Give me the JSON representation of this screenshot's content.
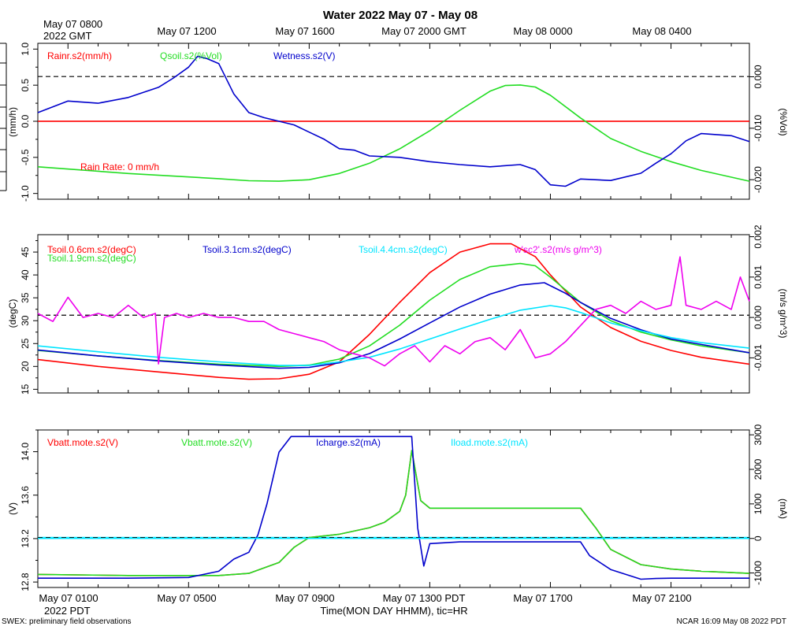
{
  "title": "Water 2022 May 07 - May 08",
  "top_axis": {
    "gmt_first": [
      "May 07 0800",
      "2022 GMT"
    ],
    "ticks": [
      "May 07 1200",
      "May 07 1600",
      "May 07 2000 GMT",
      "May 08 0000",
      "May 08 0400"
    ]
  },
  "bottom_axis": {
    "ticks": [
      "May 07 0100",
      "May 07 0500",
      "May 07 0900",
      "May 07 1300 PDT",
      "May 07 1700",
      "May 07 2100"
    ],
    "sub": "2022 PDT",
    "xlabel": "Time(MON DAY HHMM), tic=HR"
  },
  "footer": {
    "left": "SWEX: preliminary field observations",
    "right": "NCAR 16:09 May 08 2022 PDT"
  },
  "colors": {
    "red": "#ff0000",
    "green": "#22dd22",
    "blue": "#0000cc",
    "cyan": "#00e5ff",
    "magenta": "#ee00ee"
  },
  "chart_data": [
    {
      "type": "line",
      "panel": "top",
      "x_unit": "hours since May 07 0000 PDT",
      "xlim": [
        0.0,
        23.6
      ],
      "left_axis": {
        "label": "(mm/h)",
        "ticks": [
          "-1.0",
          "-0.5",
          "0.0",
          "0.5",
          "1.0"
        ],
        "ylim": [
          -1.08,
          1.08
        ]
      },
      "right_axis": {
        "label": "(%Vol)",
        "ticks": [
          "-0.020",
          "-0.010",
          "0.000"
        ],
        "ylim": [
          -0.0238,
          0.0065
        ]
      },
      "legend": [
        "Rainr.s2(mm/h)",
        "Qsoil.s2(%Vol)",
        "Wetness.s2(V)"
      ],
      "annotation": "Rain Rate: 0 mm/h",
      "reference_lines": [
        {
          "axis": "left",
          "y": 0.62,
          "style": "dashed"
        },
        {
          "axis": "left",
          "y": 0.0,
          "style": "red-dashed"
        }
      ],
      "series": [
        {
          "name": "Rainr.s2(mm/h)",
          "axis": "left",
          "color": "red",
          "x": [
            0,
            23.6
          ],
          "y": [
            0,
            0
          ]
        },
        {
          "name": "Qsoil.s2(%Vol)",
          "axis": "right",
          "color": "green",
          "x": [
            0,
            3,
            6,
            7,
            8,
            9,
            10,
            11,
            12,
            13,
            14,
            15,
            15.5,
            16,
            16.5,
            17,
            18,
            19,
            20,
            21,
            22,
            23.6
          ],
          "y": [
            -0.0175,
            -0.0188,
            -0.0198,
            -0.0202,
            -0.0203,
            -0.02,
            -0.0188,
            -0.0168,
            -0.014,
            -0.0105,
            -0.0065,
            -0.0028,
            -0.0017,
            -0.0016,
            -0.002,
            -0.0036,
            -0.008,
            -0.012,
            -0.0145,
            -0.0165,
            -0.0182,
            -0.0203
          ]
        },
        {
          "name": "Wetness.s2(V)",
          "axis": "left",
          "color": "blue",
          "x": [
            0,
            1,
            2,
            3,
            4,
            4.5,
            5,
            5.3,
            5.6,
            6,
            6.5,
            7,
            7.5,
            8,
            8.5,
            9,
            9.5,
            10,
            10.5,
            11,
            12,
            13,
            14,
            15,
            16,
            16.5,
            17,
            17.5,
            18,
            19,
            20,
            20.5,
            21,
            21.5,
            22,
            23,
            23.6
          ],
          "y": [
            0.12,
            0.28,
            0.25,
            0.33,
            0.47,
            0.6,
            0.75,
            0.9,
            0.87,
            0.8,
            0.38,
            0.12,
            0.05,
            0.0,
            -0.05,
            -0.15,
            -0.25,
            -0.38,
            -0.4,
            -0.48,
            -0.5,
            -0.56,
            -0.6,
            -0.63,
            -0.6,
            -0.67,
            -0.88,
            -0.9,
            -0.8,
            -0.82,
            -0.72,
            -0.58,
            -0.45,
            -0.27,
            -0.17,
            -0.2,
            -0.28
          ]
        }
      ]
    },
    {
      "type": "line",
      "panel": "middle",
      "x_unit": "hours since May 07 0000 PDT",
      "xlim": [
        0.0,
        23.6
      ],
      "left_axis": {
        "label": "(degC)",
        "ticks": [
          "15",
          "20",
          "25",
          "30",
          "35",
          "40",
          "45"
        ],
        "ylim": [
          14.2,
          48.8
        ]
      },
      "right_axis": {
        "label": "(m/s g/m^3)",
        "ticks": [
          "-0.001",
          "0.000",
          "0.001",
          "0.002"
        ],
        "ylim": [
          -0.00187,
          0.00205
        ]
      },
      "legend": [
        "Tsoil.0.6cm.s2(degC)",
        "Tsoil.1.9cm.s2(degC)",
        "Tsoil.3.1cm.s2(degC)",
        "Tsoil.4.4cm.s2(degC)",
        "w'sc2'.s2(m/s g/m^3)"
      ],
      "reference_lines": [
        {
          "axis": "left",
          "y": 31.2,
          "style": "dashed"
        }
      ],
      "series": [
        {
          "name": "Tsoil.0.6cm.s2(degC)",
          "axis": "left",
          "color": "red",
          "x": [
            0,
            2,
            4,
            6,
            7,
            8,
            9,
            10,
            11,
            12,
            13,
            14,
            15,
            15.7,
            16.5,
            17,
            18,
            19,
            20,
            21,
            22,
            23.6
          ],
          "y": [
            21.5,
            20.0,
            18.8,
            17.6,
            17.2,
            17.3,
            18.3,
            21.0,
            27.0,
            34.0,
            40.5,
            45.0,
            46.8,
            46.8,
            44.0,
            40.0,
            33.0,
            28.5,
            25.5,
            23.5,
            22.0,
            20.5
          ]
        },
        {
          "name": "Tsoil.1.9cm.s2(degC)",
          "axis": "left",
          "color": "green",
          "x": [
            0,
            2,
            4,
            6,
            8,
            9,
            10,
            11,
            12,
            13,
            14,
            15,
            16,
            16.5,
            17,
            18,
            19,
            20,
            21,
            22,
            23.6
          ],
          "y": [
            23.5,
            22.3,
            21.3,
            20.5,
            20.0,
            20.3,
            21.6,
            24.5,
            29.0,
            34.5,
            39.0,
            41.8,
            42.5,
            42.0,
            39.5,
            34.0,
            30.0,
            27.5,
            25.8,
            24.5,
            23.0
          ]
        },
        {
          "name": "Tsoil.3.1cm.s2(degC)",
          "axis": "left",
          "color": "blue",
          "x": [
            0,
            2,
            4,
            6,
            8,
            9,
            10,
            11,
            12,
            13,
            14,
            15,
            16,
            16.8,
            17.5,
            18,
            19,
            20,
            21,
            22,
            23.6
          ],
          "y": [
            23.6,
            22.3,
            21.2,
            20.3,
            19.6,
            19.8,
            20.8,
            22.8,
            26.0,
            29.5,
            33.0,
            35.8,
            37.8,
            38.3,
            36.0,
            34.0,
            30.5,
            28.0,
            26.0,
            24.8,
            23.0
          ]
        },
        {
          "name": "Tsoil.4.4cm.s2(degC)",
          "axis": "left",
          "color": "cyan",
          "x": [
            0,
            2,
            4,
            6,
            8,
            9,
            10,
            11,
            12,
            13,
            14,
            15,
            16,
            17,
            17.5,
            18,
            19,
            20,
            21,
            22,
            23.6
          ],
          "y": [
            24.5,
            23.2,
            22.0,
            21.0,
            20.2,
            20.2,
            21.0,
            22.0,
            23.8,
            26.0,
            28.2,
            30.3,
            32.3,
            33.3,
            32.8,
            31.8,
            29.5,
            27.8,
            26.3,
            25.2,
            24.0
          ]
        },
        {
          "name": "w'sc2'.s2(m/s g/m^3)",
          "axis": "right",
          "color": "magenta",
          "x": [
            0,
            0.5,
            1,
            1.5,
            2,
            2.5,
            3,
            3.5,
            3.9,
            4.0,
            4.2,
            4.6,
            5,
            5.5,
            6,
            6.5,
            7,
            7.5,
            8,
            8.5,
            9,
            9.5,
            10,
            10.5,
            11,
            11.5,
            12,
            12.5,
            13,
            13.5,
            14,
            14.5,
            15,
            15.5,
            16,
            16.5,
            17,
            17.5,
            18,
            18.5,
            19,
            19.5,
            20,
            20.5,
            21,
            21.3,
            21.5,
            22,
            22.5,
            23,
            23.3,
            23.6
          ],
          "y": [
            0.0001,
            -0.0001,
            0.0005,
            0.0,
            0.0001,
            0.0,
            0.0003,
            0.0,
            0.0001,
            -0.00115,
            0.0,
            0.0001,
            0.0,
            0.0001,
            0.0,
            0.0,
            -0.0001,
            -0.0001,
            -0.0003,
            -0.0004,
            -0.0005,
            -0.0006,
            -0.0008,
            -0.0009,
            -0.001,
            -0.0012,
            -0.0009,
            -0.0007,
            -0.0011,
            -0.0007,
            -0.0009,
            -0.0006,
            -0.0005,
            -0.0008,
            -0.0003,
            -0.001,
            -0.0009,
            -0.0006,
            -0.0002,
            0.0002,
            0.0003,
            0.0001,
            0.0004,
            0.0002,
            0.0003,
            0.0015,
            0.0003,
            0.0002,
            0.0004,
            0.0002,
            0.001,
            0.0004
          ]
        }
      ]
    },
    {
      "type": "line",
      "panel": "bottom",
      "x_unit": "hours since May 07 0000 PDT",
      "xlim": [
        0.0,
        23.6
      ],
      "left_axis": {
        "label": "(V)",
        "ticks": [
          "12.8",
          "13.2",
          "13.6",
          "14.0"
        ],
        "ylim": [
          12.75,
          14.2
        ]
      },
      "right_axis": {
        "label": "(mA)",
        "ticks": [
          "-1000",
          "0",
          "1000",
          "2000",
          "3000"
        ],
        "ylim": [
          -1420,
          3140
        ]
      },
      "legend": [
        "Vbatt.mote.s2(V)",
        "Vbatt.mote.s2(V)",
        "Icharge.s2(mA)",
        "Iload.mote.s2(mA)"
      ],
      "reference_lines": [
        {
          "axis": "left",
          "y": 13.21,
          "style": "dashed-cyan"
        }
      ],
      "series": [
        {
          "name": "Vbatt.mote.s2(V)",
          "axis": "left",
          "color": "red",
          "x": [
            0,
            3,
            6,
            7,
            8,
            8.5,
            9,
            10,
            11,
            11.5,
            12,
            12.2,
            12.4,
            12.7,
            13,
            14,
            15,
            16,
            17,
            18,
            18.5,
            19,
            20,
            21,
            22,
            23.6
          ],
          "y": [
            12.87,
            12.86,
            12.86,
            12.88,
            12.98,
            13.12,
            13.21,
            13.24,
            13.3,
            13.35,
            13.45,
            13.6,
            14.01,
            13.55,
            13.48,
            13.48,
            13.48,
            13.48,
            13.48,
            13.48,
            13.3,
            13.1,
            12.96,
            12.92,
            12.9,
            12.88
          ]
        },
        {
          "name": "Vbatt.mote.s2(V)",
          "axis": "left",
          "color": "green",
          "x": [
            0,
            3,
            6,
            7,
            8,
            8.5,
            9,
            10,
            11,
            11.5,
            12,
            12.2,
            12.4,
            12.7,
            13,
            14,
            15,
            16,
            17,
            18,
            18.5,
            19,
            20,
            21,
            22,
            23.6
          ],
          "y": [
            12.87,
            12.86,
            12.86,
            12.88,
            12.98,
            13.12,
            13.21,
            13.24,
            13.3,
            13.35,
            13.45,
            13.6,
            14.01,
            13.55,
            13.48,
            13.48,
            13.48,
            13.48,
            13.48,
            13.48,
            13.3,
            13.1,
            12.96,
            12.92,
            12.9,
            12.88
          ]
        },
        {
          "name": "Icharge.s2(mA)",
          "axis": "right",
          "color": "blue",
          "x": [
            0,
            3,
            5,
            6,
            6.5,
            7,
            7.3,
            7.6,
            8,
            8.4,
            8.7,
            9,
            10,
            11,
            12,
            12.4,
            12.6,
            12.8,
            13,
            14,
            15,
            16,
            17,
            18,
            18.3,
            19,
            20,
            20.5,
            21,
            22,
            23.6
          ],
          "y": [
            -1150,
            -1150,
            -1130,
            -950,
            -600,
            -400,
            100,
            1000,
            2500,
            2950,
            2950,
            2950,
            2950,
            2950,
            2950,
            2950,
            300,
            -800,
            -150,
            -100,
            -100,
            -100,
            -100,
            -100,
            -500,
            -900,
            -1180,
            -1160,
            -1150,
            -1150,
            -1150
          ]
        },
        {
          "name": "Iload.mote.s2(mA)",
          "axis": "right",
          "color": "cyan",
          "x": [
            0,
            23.6
          ],
          "y": [
            0,
            0
          ]
        }
      ]
    }
  ]
}
